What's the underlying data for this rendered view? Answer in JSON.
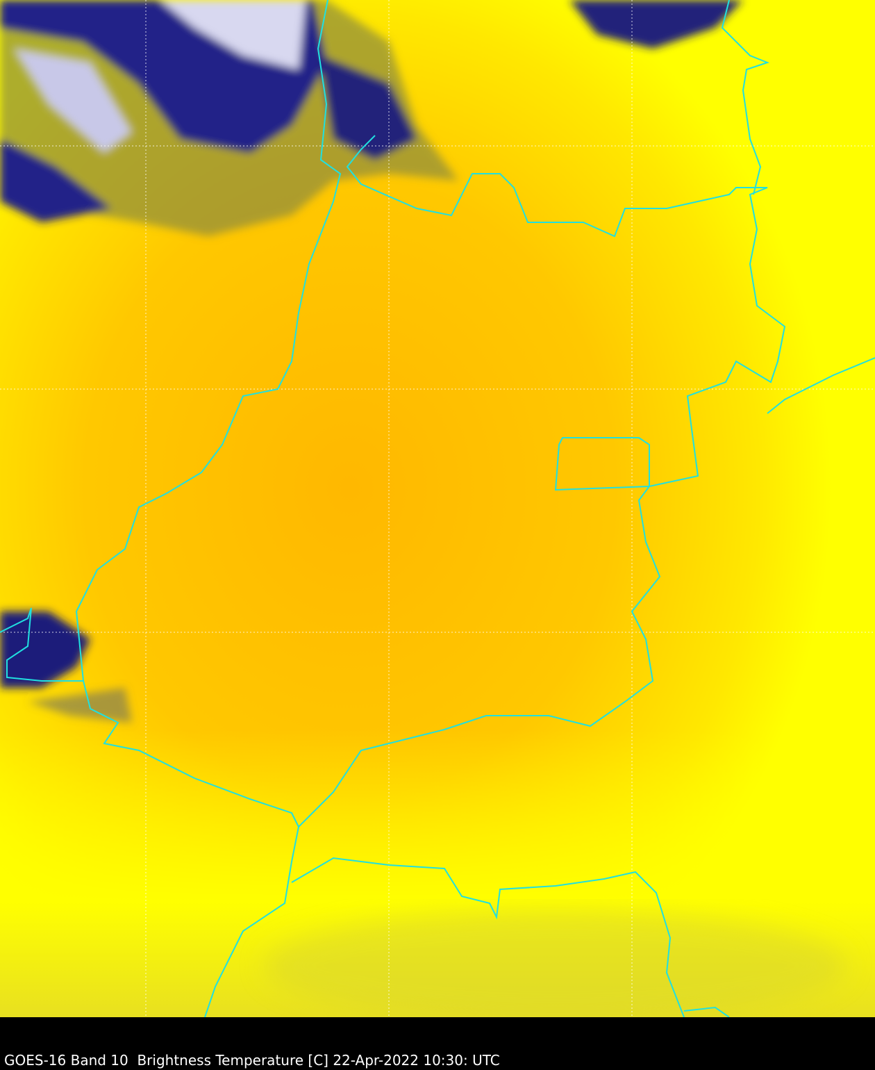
{
  "caption": "GOES-16 Band 10  Brightness Temperature [C] 22-Apr-2022 10:30: UTC",
  "map": {
    "colors": {
      "warm": "#ffbf00",
      "mid": "#ffe600",
      "cool": "#ffff00",
      "cloud_dark": "#1a1a7a",
      "cloud_light": "#e8e8f4",
      "boundary": "#20e0e0",
      "grid": "#ffffff"
    },
    "gridlines": true,
    "colormap": "yellow-orange warm, blue-white cold cloud tops"
  }
}
